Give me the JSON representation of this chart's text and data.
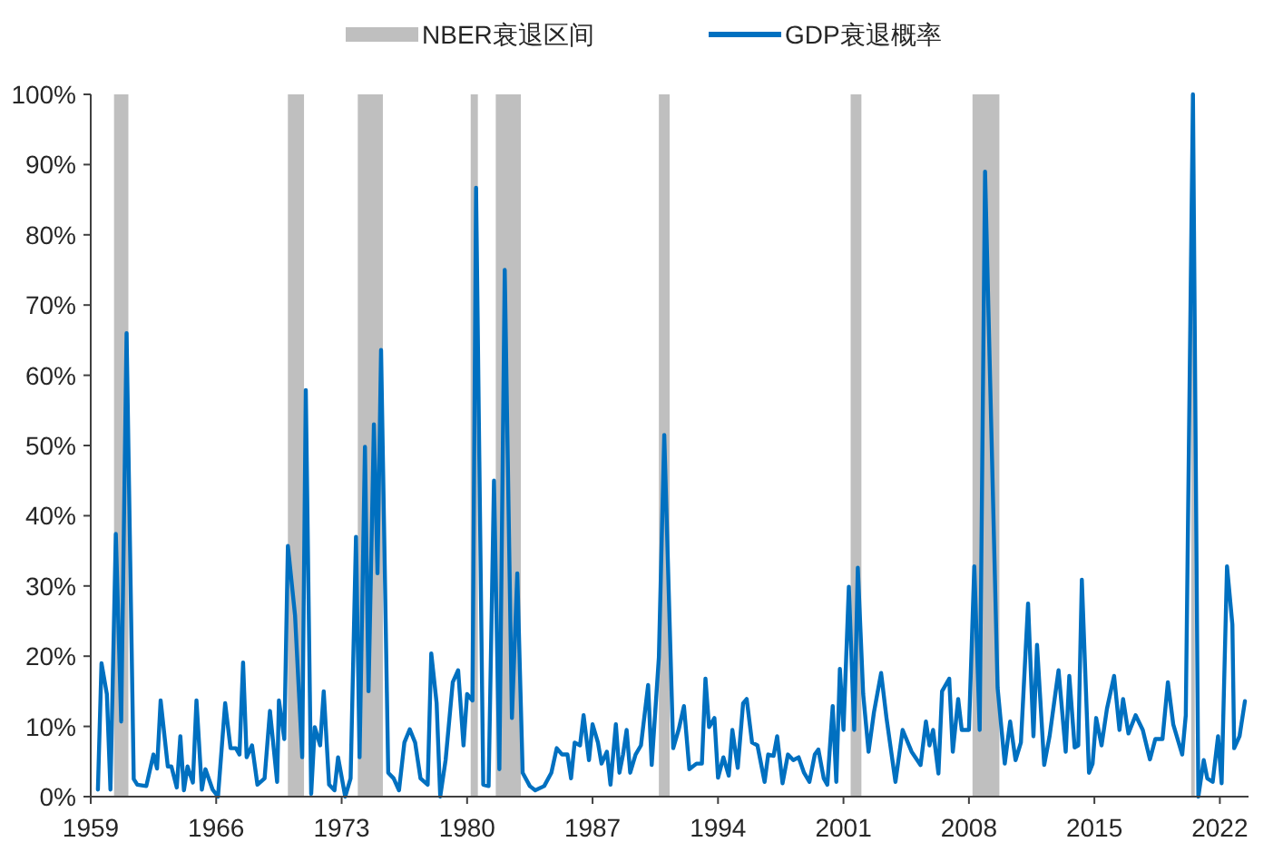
{
  "chart_data": {
    "type": "line",
    "xlim": [
      1959,
      2023.6
    ],
    "xticks": [
      1959,
      1966,
      1973,
      1980,
      1987,
      1994,
      2001,
      2008,
      2015,
      2022
    ],
    "ylim": [
      0,
      100
    ],
    "yticks": [
      {
        "value": 0,
        "label": "0%"
      },
      {
        "value": 10,
        "label": "10%"
      },
      {
        "value": 20,
        "label": "20%"
      },
      {
        "value": 30,
        "label": "30%"
      },
      {
        "value": 40,
        "label": "40%"
      },
      {
        "value": 50,
        "label": "50%"
      },
      {
        "value": 60,
        "label": "60%"
      },
      {
        "value": 70,
        "label": "70%"
      },
      {
        "value": 80,
        "label": "80%"
      },
      {
        "value": 90,
        "label": "90%"
      },
      {
        "value": 100,
        "label": "100%"
      }
    ],
    "grid": false,
    "legend": "top",
    "bands": [
      {
        "axis": "x",
        "from": 1960.3,
        "to": 1961.1,
        "label": "NBER衰退区间",
        "color": "#bfbfbf"
      },
      {
        "axis": "x",
        "from": 1970.0,
        "to": 1970.9,
        "color": "#bfbfbf"
      },
      {
        "axis": "x",
        "from": 1973.9,
        "to": 1975.3,
        "color": "#bfbfbf"
      },
      {
        "axis": "x",
        "from": 1980.2,
        "to": 1980.6,
        "color": "#bfbfbf"
      },
      {
        "axis": "x",
        "from": 1981.6,
        "to": 1983.0,
        "color": "#bfbfbf"
      },
      {
        "axis": "x",
        "from": 1990.7,
        "to": 1991.3,
        "color": "#bfbfbf"
      },
      {
        "axis": "x",
        "from": 2001.4,
        "to": 2002.0,
        "color": "#bfbfbf"
      },
      {
        "axis": "x",
        "from": 2008.2,
        "to": 2009.7,
        "color": "#bfbfbf"
      },
      {
        "axis": "x",
        "from": 2020.4,
        "to": 2020.6,
        "color": "#bfbfbf"
      }
    ],
    "series": [
      {
        "name": "GDP衰退概率",
        "color": "#0070c0",
        "x": [
          1959.4,
          1959.6,
          1959.9,
          1960.1,
          1960.4,
          1960.7,
          1961.0,
          1961.4,
          1961.6,
          1962.1,
          1962.5,
          1962.7,
          1962.9,
          1963.3,
          1963.5,
          1963.8,
          1964.0,
          1964.2,
          1964.4,
          1964.7,
          1964.9,
          1965.2,
          1965.4,
          1965.8,
          1966.1,
          1966.5,
          1966.8,
          1967.1,
          1967.3,
          1967.5,
          1967.7,
          1968.0,
          1968.3,
          1968.7,
          1969.0,
          1969.4,
          1969.5,
          1969.8,
          1970.0,
          1970.4,
          1970.8,
          1971.0,
          1971.3,
          1971.5,
          1971.8,
          1972.0,
          1972.3,
          1972.6,
          1972.8,
          1973.2,
          1973.5,
          1973.8,
          1974.0,
          1974.3,
          1974.5,
          1974.8,
          1975.0,
          1975.2,
          1975.6,
          1975.9,
          1976.2,
          1976.5,
          1976.8,
          1977.1,
          1977.4,
          1977.8,
          1978.0,
          1978.3,
          1978.5,
          1978.8,
          1979.2,
          1979.5,
          1979.8,
          1980.0,
          1980.3,
          1980.5,
          1980.9,
          1981.2,
          1981.5,
          1981.8,
          1982.1,
          1982.5,
          1982.8,
          1983.1,
          1983.5,
          1983.8,
          1984.3,
          1984.7,
          1985.0,
          1985.3,
          1985.6,
          1985.8,
          1986.0,
          1986.3,
          1986.5,
          1986.8,
          1987.0,
          1987.3,
          1987.5,
          1987.8,
          1988.0,
          1988.3,
          1988.5,
          1988.7,
          1988.9,
          1989.1,
          1989.4,
          1989.7,
          1990.1,
          1990.3,
          1990.7,
          1991.0,
          1991.5,
          1991.8,
          1992.1,
          1992.4,
          1992.8,
          1993.1,
          1993.3,
          1993.5,
          1993.8,
          1994.0,
          1994.3,
          1994.6,
          1994.8,
          1995.1,
          1995.4,
          1995.6,
          1995.9,
          1996.2,
          1996.6,
          1996.8,
          1997.1,
          1997.3,
          1997.6,
          1997.9,
          1998.2,
          1998.5,
          1998.8,
          1999.1,
          1999.4,
          1999.6,
          1999.9,
          2000.1,
          2000.4,
          2000.6,
          2000.8,
          2001.0,
          2001.3,
          2001.6,
          2001.8,
          2002.1,
          2002.4,
          2002.7,
          2003.1,
          2003.4,
          2003.9,
          2004.3,
          2004.8,
          2005.3,
          2005.6,
          2005.8,
          2006.0,
          2006.3,
          2006.5,
          2006.9,
          2007.1,
          2007.4,
          2007.6,
          2008.0,
          2008.3,
          2008.6,
          2008.9,
          2009.6,
          2010.0,
          2010.3,
          2010.6,
          2010.9,
          2011.3,
          2011.6,
          2011.8,
          2012.2,
          2012.5,
          2013.0,
          2013.4,
          2013.6,
          2013.9,
          2014.1,
          2014.3,
          2014.7,
          2014.9,
          2015.1,
          2015.4,
          2015.7,
          2016.1,
          2016.4,
          2016.6,
          2016.9,
          2017.3,
          2017.7,
          2018.1,
          2018.4,
          2018.8,
          2019.1,
          2019.4,
          2019.9,
          2020.1,
          2020.5,
          2020.8,
          2021.1,
          2021.3,
          2021.6,
          2021.9,
          2022.1,
          2022.4,
          2022.7,
          2022.8,
          2023.1,
          2023.4
        ],
        "values": [
          1,
          19,
          14.6,
          1,
          37.4,
          10.7,
          66,
          2.5,
          1.7,
          1.5,
          6,
          4,
          13.7,
          4.3,
          4.3,
          1.3,
          8.6,
          0.9,
          4.3,
          2,
          13.7,
          1,
          3.9,
          1,
          0,
          13.3,
          6.9,
          6.9,
          6,
          19.1,
          5.6,
          7.3,
          1.7,
          2.6,
          12.2,
          2.1,
          13.7,
          8.2,
          35.7,
          25.8,
          5.6,
          57.9,
          0.4,
          9.9,
          7.3,
          15,
          1.7,
          0.9,
          5.6,
          0,
          2.6,
          37,
          5.6,
          49.8,
          15,
          53,
          31.8,
          63.6,
          3.4,
          2.6,
          0.9,
          7.7,
          9.6,
          7.7,
          2.6,
          1.7,
          20.4,
          13.3,
          0,
          5.2,
          16.3,
          18,
          7.3,
          14.6,
          13.7,
          86.7,
          1.7,
          1.5,
          45,
          3.9,
          75,
          11.2,
          31.8,
          3.4,
          1.5,
          0.9,
          1.5,
          3.4,
          6.9,
          6,
          6,
          2.6,
          7.7,
          7.3,
          11.6,
          5.2,
          10.3,
          7.7,
          4.7,
          6.4,
          1.7,
          10.3,
          3.4,
          6,
          9.5,
          3.4,
          6,
          7.3,
          15.9,
          4.5,
          19.8,
          51.5,
          6.9,
          9.5,
          12.9,
          3.9,
          4.7,
          4.7,
          16.8,
          9.9,
          11.2,
          2.7,
          5.6,
          3,
          9.5,
          4.1,
          13.3,
          13.9,
          7.7,
          7.3,
          2.1,
          6,
          5.8,
          8.6,
          1.9,
          6,
          5.2,
          5.6,
          3.4,
          2.1,
          6,
          6.7,
          2.6,
          1.7,
          12.9,
          2.1,
          18.2,
          9.5,
          29.9,
          9.5,
          32.6,
          14.6,
          6.4,
          12,
          17.6,
          11.2,
          2.1,
          9.5,
          6.4,
          4.5,
          10.7,
          7.3,
          9.5,
          3.3,
          15,
          16.8,
          6.4,
          13.9,
          9.5,
          9.5,
          32.8,
          9.5,
          89,
          15.5,
          4.7,
          10.7,
          5.2,
          7.7,
          27.5,
          8.6,
          21.6,
          4.5,
          8.6,
          18,
          6.4,
          17.2,
          7,
          7.3,
          30.9,
          3.4,
          4.7,
          11.2,
          7.3,
          12.5,
          17.2,
          9.5,
          13.9,
          9,
          11.6,
          9.5,
          5.3,
          8.2,
          8.2,
          16.3,
          10.3,
          6,
          11.6,
          100,
          0,
          5.2,
          2.6,
          2.1,
          8.6,
          1.9,
          32.8,
          24.5,
          6.9,
          8.6,
          13.6
        ]
      }
    ]
  }
}
